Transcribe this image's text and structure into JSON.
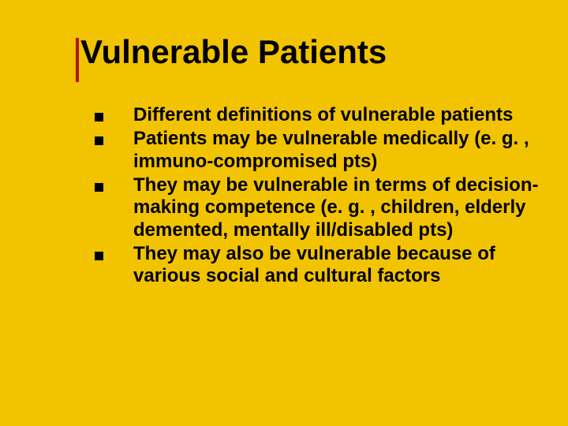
{
  "slide": {
    "background_color": "#f2c300",
    "accent_bar_color": "#b01717",
    "title_color": "#000000",
    "text_color": "#000000",
    "bullet_color": "#000000",
    "title_fontsize": 42,
    "text_fontsize": 24,
    "title": "Vulnerable Patients",
    "bullets": [
      "Different definitions of vulnerable patients",
      "Patients may be vulnerable medically (e. g. , immuno-compromised pts)",
      "They may be vulnerable in terms of decision-making competence (e. g. , children, elderly demented, mentally ill/disabled pts)",
      "They may also be vulnerable because of various social and cultural factors"
    ]
  }
}
